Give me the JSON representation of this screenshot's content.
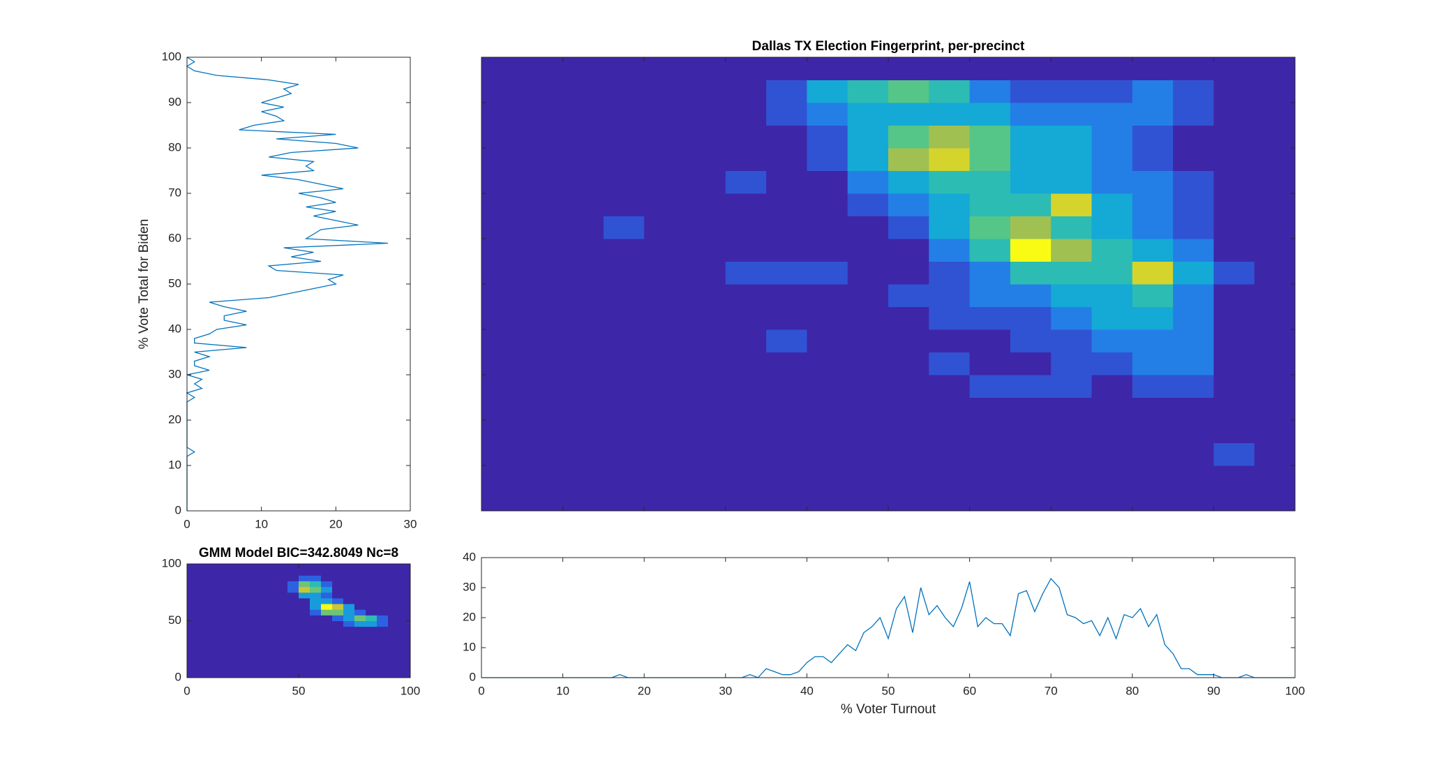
{
  "chart_data": [
    {
      "type": "line",
      "orientation": "vertical",
      "ylabel": "% Vote Total for Biden",
      "color": "#0072bd",
      "xlim": [
        0,
        30
      ],
      "xticks": [
        0,
        10,
        20,
        30
      ],
      "ylim": [
        0,
        100
      ],
      "yticks": [
        0,
        10,
        20,
        30,
        40,
        50,
        60,
        70,
        80,
        90,
        100
      ],
      "y": [
        0,
        1,
        2,
        3,
        4,
        5,
        6,
        7,
        8,
        9,
        10,
        11,
        12,
        13,
        14,
        15,
        16,
        17,
        18,
        19,
        20,
        21,
        22,
        23,
        24,
        25,
        26,
        27,
        28,
        29,
        30,
        31,
        32,
        33,
        34,
        35,
        36,
        37,
        38,
        39,
        40,
        41,
        42,
        43,
        44,
        45,
        46,
        47,
        48,
        49,
        50,
        51,
        52,
        53,
        54,
        55,
        56,
        57,
        58,
        59,
        60,
        61,
        62,
        63,
        64,
        65,
        66,
        67,
        68,
        69,
        70,
        71,
        72,
        73,
        74,
        75,
        76,
        77,
        78,
        79,
        80,
        81,
        82,
        83,
        84,
        85,
        86,
        87,
        88,
        89,
        90,
        91,
        92,
        93,
        94,
        95,
        96,
        97,
        98,
        99,
        100
      ],
      "values": [
        0,
        0,
        0,
        0,
        0,
        0,
        0,
        0,
        0,
        0,
        0,
        0,
        0,
        1,
        0,
        0,
        0,
        0,
        0,
        0,
        0,
        0,
        0,
        0,
        0,
        1,
        0,
        2,
        1,
        2,
        0,
        3,
        1,
        1,
        3,
        1,
        8,
        1,
        1,
        3,
        4,
        8,
        5,
        5,
        8,
        5,
        3,
        11,
        14,
        17,
        20,
        19,
        21,
        12,
        11,
        18,
        14,
        17,
        13,
        27,
        16,
        17,
        18,
        23,
        20,
        17,
        20,
        16,
        20,
        18,
        15,
        21,
        18,
        15,
        10,
        17,
        16,
        17,
        11,
        14,
        23,
        20,
        12,
        20,
        7,
        9,
        13,
        12,
        10,
        13,
        10,
        12,
        14,
        13,
        15,
        11,
        4,
        1,
        0,
        1,
        0
      ]
    },
    {
      "type": "heatmap",
      "title": "Dallas TX Election Fingerprint, per-precinct",
      "tick_labels": false,
      "xlim": [
        0,
        100
      ],
      "xticks": [
        0,
        10,
        20,
        30,
        40,
        50,
        60,
        70,
        80,
        90,
        100
      ],
      "ylim": [
        0,
        100
      ],
      "yticks": [
        0,
        10,
        20,
        30,
        40,
        50,
        60,
        70,
        80,
        90,
        100
      ],
      "xbins": [
        0,
        5,
        10,
        15,
        20,
        25,
        30,
        35,
        40,
        45,
        50,
        55,
        60,
        65,
        70,
        75,
        80,
        85,
        90,
        95,
        100
      ],
      "ybins": [
        0,
        5,
        10,
        15,
        20,
        25,
        30,
        35,
        40,
        45,
        50,
        55,
        60,
        65,
        70,
        75,
        80,
        85,
        90,
        95,
        100
      ],
      "z": [
        [
          0,
          0,
          0,
          0,
          0,
          0,
          0,
          0,
          0,
          0,
          0,
          0,
          0,
          0,
          0,
          0,
          0,
          0,
          0,
          0
        ],
        [
          0,
          0,
          0,
          0,
          0,
          0,
          0,
          0,
          0,
          0,
          0,
          0,
          0,
          0,
          0,
          0,
          0,
          0,
          0,
          0
        ],
        [
          0,
          0,
          0,
          0,
          0,
          0,
          0,
          0,
          0,
          0,
          0,
          0,
          0,
          0,
          0,
          0,
          0,
          0,
          1,
          0
        ],
        [
          0,
          0,
          0,
          0,
          0,
          0,
          0,
          0,
          0,
          0,
          0,
          0,
          0,
          0,
          0,
          0,
          0,
          0,
          0,
          0
        ],
        [
          0,
          0,
          0,
          0,
          0,
          0,
          0,
          0,
          0,
          0,
          0,
          0,
          0,
          0,
          0,
          0,
          0,
          0,
          0,
          0
        ],
        [
          0,
          0,
          0,
          0,
          0,
          0,
          0,
          0,
          0,
          0,
          0,
          0,
          1,
          1,
          1,
          0,
          1,
          1,
          0,
          0
        ],
        [
          0,
          0,
          0,
          0,
          0,
          0,
          0,
          0,
          0,
          0,
          0,
          1,
          0,
          0,
          1,
          1,
          2,
          2,
          0,
          0
        ],
        [
          0,
          0,
          0,
          0,
          0,
          0,
          0,
          1,
          0,
          0,
          0,
          0,
          0,
          1,
          1,
          2,
          2,
          2,
          0,
          0
        ],
        [
          0,
          0,
          0,
          0,
          0,
          0,
          0,
          0,
          0,
          0,
          0,
          1,
          1,
          1,
          2,
          3,
          3,
          2,
          0,
          0
        ],
        [
          0,
          0,
          0,
          0,
          0,
          0,
          0,
          0,
          0,
          0,
          1,
          1,
          2,
          2,
          3,
          3,
          4,
          2,
          0,
          0
        ],
        [
          0,
          0,
          0,
          0,
          0,
          0,
          1,
          1,
          1,
          0,
          0,
          1,
          2,
          4,
          4,
          4,
          7,
          3,
          1,
          0
        ],
        [
          0,
          0,
          0,
          0,
          0,
          0,
          0,
          0,
          0,
          0,
          0,
          2,
          4,
          8,
          6,
          4,
          3,
          2,
          0,
          0
        ],
        [
          0,
          0,
          0,
          1,
          0,
          0,
          0,
          0,
          0,
          0,
          1,
          3,
          5,
          6,
          4,
          3,
          2,
          1,
          0,
          0
        ],
        [
          0,
          0,
          0,
          0,
          0,
          0,
          0,
          0,
          0,
          1,
          2,
          3,
          4,
          4,
          7,
          3,
          2,
          1,
          0,
          0
        ],
        [
          0,
          0,
          0,
          0,
          0,
          0,
          1,
          0,
          0,
          2,
          3,
          4,
          4,
          3,
          3,
          2,
          2,
          1,
          0,
          0
        ],
        [
          0,
          0,
          0,
          0,
          0,
          0,
          0,
          0,
          1,
          3,
          6,
          7,
          5,
          3,
          3,
          2,
          1,
          0,
          0,
          0
        ],
        [
          0,
          0,
          0,
          0,
          0,
          0,
          0,
          0,
          1,
          3,
          5,
          6,
          5,
          3,
          3,
          2,
          1,
          0,
          0,
          0
        ],
        [
          0,
          0,
          0,
          0,
          0,
          0,
          0,
          1,
          2,
          3,
          3,
          3,
          3,
          2,
          2,
          2,
          2,
          1,
          0,
          0
        ],
        [
          0,
          0,
          0,
          0,
          0,
          0,
          0,
          1,
          3,
          4,
          5,
          4,
          2,
          1,
          1,
          1,
          2,
          1,
          0,
          0
        ],
        [
          0,
          0,
          0,
          0,
          0,
          0,
          0,
          0,
          0,
          0,
          0,
          0,
          0,
          0,
          0,
          0,
          0,
          0,
          0,
          0
        ]
      ]
    },
    {
      "type": "heatmap",
      "title": "GMM Model BIC=342.8049 Nc=8",
      "xlim": [
        0,
        100
      ],
      "xticks": [
        0,
        50,
        100
      ],
      "ylim": [
        0,
        100
      ],
      "yticks": [
        0,
        50,
        100
      ],
      "xbins": [
        0,
        5,
        10,
        15,
        20,
        25,
        30,
        35,
        40,
        45,
        50,
        55,
        60,
        65,
        70,
        75,
        80,
        85,
        90,
        95,
        100
      ],
      "ybins": [
        0,
        5,
        10,
        15,
        20,
        25,
        30,
        35,
        40,
        45,
        50,
        55,
        60,
        65,
        70,
        75,
        80,
        85,
        90,
        95,
        100
      ],
      "z": [
        [
          0,
          0,
          0,
          0,
          0,
          0,
          0,
          0,
          0,
          0,
          0,
          0,
          0,
          0,
          0,
          0,
          0,
          0,
          0,
          0
        ],
        [
          0,
          0,
          0,
          0,
          0,
          0,
          0,
          0,
          0,
          0,
          0,
          0,
          0,
          0,
          0,
          0,
          0,
          0,
          0,
          0
        ],
        [
          0,
          0,
          0,
          0,
          0,
          0,
          0,
          0,
          0,
          0,
          0,
          0,
          0,
          0,
          0,
          0,
          0,
          0,
          0,
          0
        ],
        [
          0,
          0,
          0,
          0,
          0,
          0,
          0,
          0,
          0,
          0,
          0,
          0,
          0,
          0,
          0,
          0,
          0,
          0,
          0,
          0
        ],
        [
          0,
          0,
          0,
          0,
          0,
          0,
          0,
          0,
          0,
          0,
          0,
          0,
          0,
          0,
          0,
          0,
          0,
          0,
          0,
          0
        ],
        [
          0,
          0,
          0,
          0,
          0,
          0,
          0,
          0,
          0,
          0,
          0,
          0,
          0,
          0,
          0,
          0,
          0,
          0,
          0,
          0
        ],
        [
          0,
          0,
          0,
          0,
          0,
          0,
          0,
          0,
          0,
          0,
          0,
          0,
          0,
          0,
          0,
          0,
          0,
          0,
          0,
          0
        ],
        [
          0,
          0,
          0,
          0,
          0,
          0,
          0,
          0,
          0,
          0,
          0,
          0,
          0,
          0,
          0,
          0,
          0,
          0,
          0,
          0
        ],
        [
          0,
          0,
          0,
          0,
          0,
          0,
          0,
          0,
          0,
          0,
          0,
          0,
          0,
          0,
          0,
          0,
          0,
          0,
          0,
          0
        ],
        [
          0,
          0,
          0,
          0,
          0,
          0,
          0,
          0,
          0,
          0,
          0,
          0,
          0,
          0,
          1,
          2,
          2,
          1,
          0,
          0
        ],
        [
          0,
          0,
          0,
          0,
          0,
          0,
          0,
          0,
          0,
          0,
          0,
          0,
          0,
          1,
          2,
          4,
          3,
          1,
          0,
          0
        ],
        [
          0,
          0,
          0,
          0,
          0,
          0,
          0,
          0,
          0,
          0,
          0,
          1,
          4,
          4,
          2,
          1,
          0,
          0,
          0,
          0
        ],
        [
          0,
          0,
          0,
          0,
          0,
          0,
          0,
          0,
          0,
          0,
          0,
          2,
          6,
          5,
          2,
          0,
          0,
          0,
          0,
          0
        ],
        [
          0,
          0,
          0,
          0,
          0,
          0,
          0,
          0,
          0,
          0,
          0,
          2,
          2,
          1,
          0,
          0,
          0,
          0,
          0,
          0
        ],
        [
          0,
          0,
          0,
          0,
          0,
          0,
          0,
          0,
          0,
          0,
          2,
          2,
          1,
          0,
          0,
          0,
          0,
          0,
          0,
          0
        ],
        [
          0,
          0,
          0,
          0,
          0,
          0,
          0,
          0,
          0,
          1,
          5,
          4,
          2,
          0,
          0,
          0,
          0,
          0,
          0,
          0
        ],
        [
          0,
          0,
          0,
          0,
          0,
          0,
          0,
          0,
          0,
          1,
          4,
          3,
          1,
          0,
          0,
          0,
          0,
          0,
          0,
          0
        ],
        [
          0,
          0,
          0,
          0,
          0,
          0,
          0,
          0,
          0,
          0,
          1,
          1,
          0,
          0,
          0,
          0,
          0,
          0,
          0,
          0
        ],
        [
          0,
          0,
          0,
          0,
          0,
          0,
          0,
          0,
          0,
          0,
          0,
          0,
          0,
          0,
          0,
          0,
          0,
          0,
          0,
          0
        ],
        [
          0,
          0,
          0,
          0,
          0,
          0,
          0,
          0,
          0,
          0,
          0,
          0,
          0,
          0,
          0,
          0,
          0,
          0,
          0,
          0
        ]
      ]
    },
    {
      "type": "line",
      "orientation": "horizontal",
      "xlabel": "% Voter Turnout",
      "color": "#0072bd",
      "xlim": [
        0,
        100
      ],
      "xticks": [
        0,
        10,
        20,
        30,
        40,
        50,
        60,
        70,
        80,
        90,
        100
      ],
      "ylim": [
        0,
        40
      ],
      "yticks": [
        0,
        10,
        20,
        30,
        40
      ],
      "x": [
        0,
        1,
        2,
        3,
        4,
        5,
        6,
        7,
        8,
        9,
        10,
        11,
        12,
        13,
        14,
        15,
        16,
        17,
        18,
        19,
        20,
        21,
        22,
        23,
        24,
        25,
        26,
        27,
        28,
        29,
        30,
        31,
        32,
        33,
        34,
        35,
        36,
        37,
        38,
        39,
        40,
        41,
        42,
        43,
        44,
        45,
        46,
        47,
        48,
        49,
        50,
        51,
        52,
        53,
        54,
        55,
        56,
        57,
        58,
        59,
        60,
        61,
        62,
        63,
        64,
        65,
        66,
        67,
        68,
        69,
        70,
        71,
        72,
        73,
        74,
        75,
        76,
        77,
        78,
        79,
        80,
        81,
        82,
        83,
        84,
        85,
        86,
        87,
        88,
        89,
        90,
        91,
        92,
        93,
        94,
        95,
        96,
        97,
        98,
        99,
        100
      ],
      "values": [
        0,
        0,
        0,
        0,
        0,
        0,
        0,
        0,
        0,
        0,
        0,
        0,
        0,
        0,
        0,
        0,
        0,
        1,
        0,
        0,
        0,
        0,
        0,
        0,
        0,
        0,
        0,
        0,
        0,
        0,
        0,
        0,
        0,
        1,
        0,
        3,
        2,
        1,
        1,
        2,
        5,
        7,
        7,
        5,
        8,
        11,
        9,
        15,
        17,
        20,
        13,
        23,
        27,
        15,
        30,
        21,
        24,
        20,
        17,
        23,
        32,
        17,
        20,
        18,
        18,
        14,
        28,
        29,
        22,
        28,
        33,
        30,
        21,
        20,
        18,
        19,
        14,
        20,
        13,
        21,
        20,
        23,
        17,
        21,
        11,
        8,
        3,
        3,
        1,
        1,
        1,
        0,
        0,
        0,
        1,
        0,
        0,
        0,
        0,
        0,
        0
      ]
    }
  ]
}
